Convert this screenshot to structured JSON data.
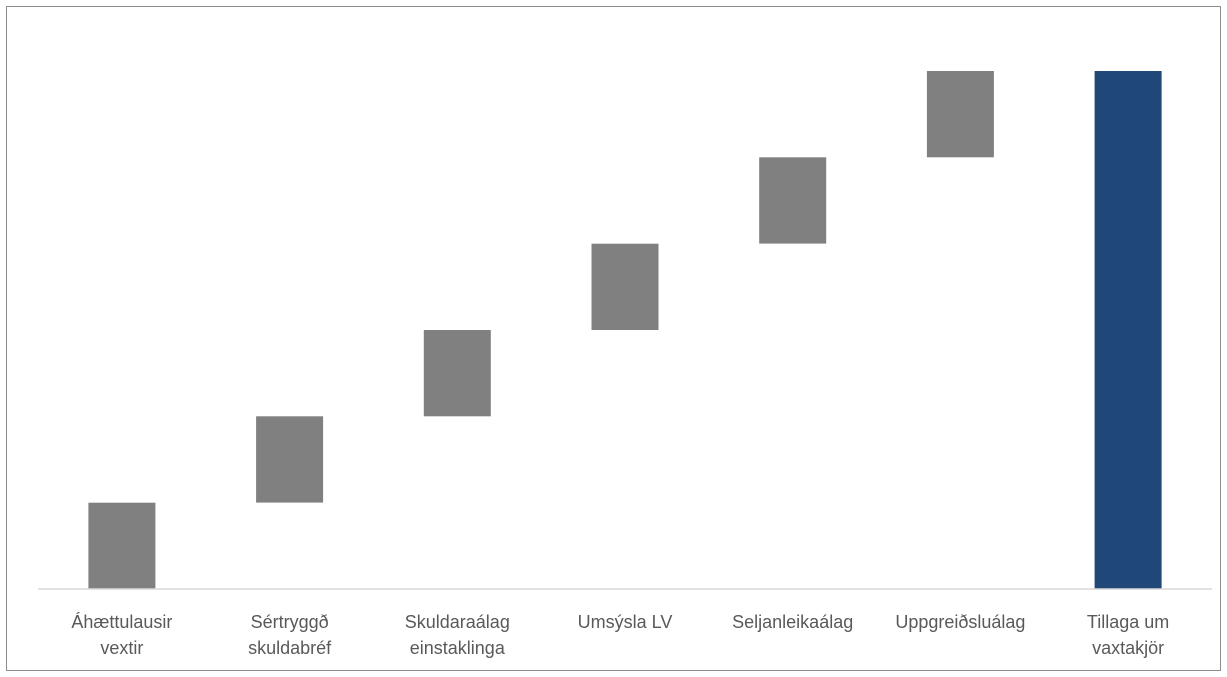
{
  "chart_data": {
    "type": "bar",
    "subtype": "waterfall",
    "title": "",
    "xlabel": "",
    "ylabel": "",
    "ylim": [
      0,
      600
    ],
    "grid": false,
    "legend": "none",
    "categories": [
      [
        "Áhættulausir",
        "vextir"
      ],
      [
        "Sértryggð",
        "skuldabréf"
      ],
      [
        "Skuldaraálag",
        "einstaklinga"
      ],
      [
        "Umsýsla LV"
      ],
      [
        "Seljanleikaálag"
      ],
      [
        "Uppgreiðsluálag"
      ],
      [
        "Tillaga um",
        "vaxtakjör"
      ]
    ],
    "values": [
      100,
      100,
      100,
      100,
      100,
      100,
      600
    ],
    "bars": [
      {
        "base": 0,
        "top": 100,
        "kind": "increase"
      },
      {
        "base": 100,
        "top": 200,
        "kind": "increase"
      },
      {
        "base": 200,
        "top": 300,
        "kind": "increase"
      },
      {
        "base": 300,
        "top": 400,
        "kind": "increase"
      },
      {
        "base": 400,
        "top": 500,
        "kind": "increase"
      },
      {
        "base": 500,
        "top": 600,
        "kind": "increase"
      },
      {
        "base": 0,
        "top": 600,
        "kind": "total"
      }
    ],
    "colors": {
      "increase": "#808080",
      "total": "#1f4778",
      "axis": "#d9d9d9",
      "label": "#595959"
    }
  }
}
